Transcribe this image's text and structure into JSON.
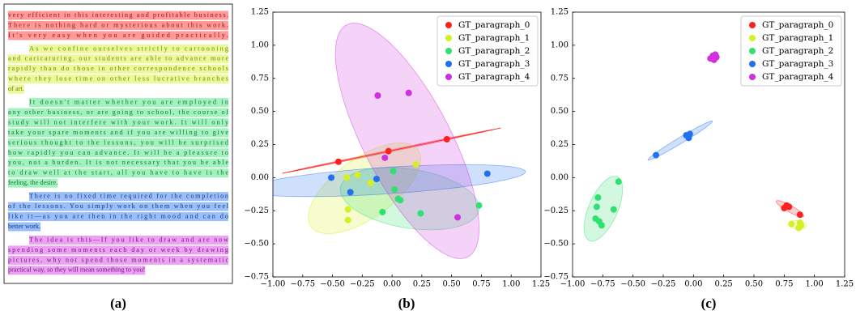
{
  "panel_labels": [
    "(a)",
    "(b)",
    "(c)"
  ],
  "document": {
    "paragraphs": [
      {
        "color": "#ff2020",
        "text_color": "#a01010",
        "lines": [
          "very efficient in this interesting and profitable business.",
          "There is nothing hard or mysterious about this work.",
          "It's very easy when you are guided practically."
        ]
      },
      {
        "color": "#d4f020",
        "text_color": "#6a8a00",
        "lines": [
          "As we confine ourselves strictly to cartooning",
          "and caricaturing, our students are able to advance more",
          "rapidly than do those in other correspondence schools",
          "where they lose time on other less lucrative branches",
          "of art."
        ]
      },
      {
        "color": "#30e070",
        "text_color": "#107a30",
        "lines": [
          "It doesn't matter whether you are employed in",
          "any other business, or are going to school, the course of",
          "study will not interfere with your work.  It will only",
          "take your spare moments and if you are willing to give",
          "serious thought to the lessons, you will be surprised",
          "how rapidly you can advance.  It will be a pleasure to",
          "you, not a burden.  It is not necessary that you be able",
          "to draw well at the start, all you have to have is the",
          "feeling, the desire."
        ]
      },
      {
        "color": "#2070f0",
        "text_color": "#103a90",
        "lines": [
          "There is no fixed time required for the completion",
          "of the lessons.  You simply work on them when you feel",
          "like it—as you are then in the right mood and can do",
          "better work."
        ]
      },
      {
        "color": "#d030e0",
        "text_color": "#7a1090",
        "lines": [
          "The idea is this—If you like to draw and are now",
          "spending some moments each day or week by drawing",
          "pictures, why not spend those moments in a systematic",
          "practical way, so they will mean something to you!"
        ]
      }
    ]
  },
  "chart_data": [
    {
      "type": "scatter",
      "legend": "upper right",
      "trend_series": 0,
      "xlim": [
        -1.0,
        1.25
      ],
      "ylim": [
        -0.75,
        1.25
      ],
      "xticks": [
        {
          "value": -1.0,
          "label": "−1.00"
        },
        {
          "value": -0.75,
          "label": "−0.75"
        },
        {
          "value": -0.5,
          "label": "−0.50"
        },
        {
          "value": -0.25,
          "label": "−0.25"
        },
        {
          "value": 0,
          "label": "0.00"
        },
        {
          "value": 0.25,
          "label": "0.25"
        },
        {
          "value": 0.5,
          "label": "0.50"
        },
        {
          "value": 0.75,
          "label": "0.75"
        },
        {
          "value": 1.0,
          "label": "1.00"
        },
        {
          "value": 1.25,
          "label": "1.25"
        }
      ],
      "yticks": [
        {
          "value": -0.75,
          "label": "−0.75"
        },
        {
          "value": -0.5,
          "label": "−0.50"
        },
        {
          "value": -0.25,
          "label": "−0.25"
        },
        {
          "value": 0,
          "label": "0.00"
        },
        {
          "value": 0.25,
          "label": "0.25"
        },
        {
          "value": 0.5,
          "label": "0.50"
        },
        {
          "value": 0.75,
          "label": "0.75"
        },
        {
          "value": 1.0,
          "label": "1.00"
        },
        {
          "value": 1.25,
          "label": "1.25"
        }
      ],
      "series": [
        {
          "name": "GT_paragraph_0",
          "color": "#ff2020",
          "x": [
            -0.45,
            -0.03,
            0.46
          ],
          "values": [
            0.12,
            0.2,
            0.29
          ]
        },
        {
          "name": "GT_paragraph_1",
          "color": "#d4f020",
          "x": [
            -0.38,
            -0.29,
            -0.37,
            -0.37,
            -0.18,
            0.2
          ],
          "values": [
            0.0,
            0.02,
            -0.24,
            -0.32,
            -0.04,
            0.1
          ]
        },
        {
          "name": "GT_paragraph_2",
          "color": "#30e070",
          "x": [
            0.01,
            0.02,
            0.05,
            0.07,
            -0.08,
            0.24,
            0.73
          ],
          "values": [
            0.05,
            -0.09,
            -0.16,
            -0.17,
            -0.26,
            -0.27,
            -0.21
          ]
        },
        {
          "name": "GT_paragraph_3",
          "color": "#2070f0",
          "x": [
            -0.51,
            -0.35,
            -0.13,
            0.8
          ],
          "values": [
            0.0,
            -0.11,
            -0.01,
            0.03
          ]
        },
        {
          "name": "GT_paragraph_4",
          "color": "#d030e0",
          "x": [
            -0.12,
            0.14,
            -0.06,
            0.55
          ],
          "values": [
            0.62,
            0.64,
            0.15,
            -0.3
          ]
        }
      ]
    },
    {
      "type": "scatter",
      "legend": "upper right",
      "xlim": [
        -1.0,
        1.25
      ],
      "ylim": [
        -0.75,
        1.25
      ],
      "xticks": [
        {
          "value": -1.0,
          "label": "−1.00"
        },
        {
          "value": -0.75,
          "label": "−0.75"
        },
        {
          "value": -0.5,
          "label": "−0.50"
        },
        {
          "value": -0.25,
          "label": "−0.25"
        },
        {
          "value": 0,
          "label": "0.00"
        },
        {
          "value": 0.25,
          "label": "0.25"
        },
        {
          "value": 0.5,
          "label": "0.50"
        },
        {
          "value": 0.75,
          "label": "0.75"
        },
        {
          "value": 1.0,
          "label": "1.00"
        },
        {
          "value": 1.25,
          "label": "1.25"
        }
      ],
      "yticks": [
        {
          "value": -0.75,
          "label": "−0.75"
        },
        {
          "value": -0.5,
          "label": "−0.50"
        },
        {
          "value": -0.25,
          "label": "−0.25"
        },
        {
          "value": 0,
          "label": "0.00"
        },
        {
          "value": 0.25,
          "label": "0.25"
        },
        {
          "value": 0.5,
          "label": "0.50"
        },
        {
          "value": 0.75,
          "label": "0.75"
        },
        {
          "value": 1.0,
          "label": "1.00"
        },
        {
          "value": 1.25,
          "label": "1.25"
        }
      ],
      "series": [
        {
          "name": "GT_paragraph_0",
          "color": "#ff2020",
          "x": [
            0.77,
            0.79,
            0.75,
            0.88
          ],
          "values": [
            -0.21,
            -0.22,
            -0.23,
            -0.28
          ]
        },
        {
          "name": "GT_paragraph_1",
          "color": "#d4f020",
          "x": [
            0.81,
            0.88,
            0.87,
            0.89
          ],
          "values": [
            -0.35,
            -0.34,
            -0.38,
            -0.36
          ]
        },
        {
          "name": "GT_paragraph_2",
          "color": "#30e070",
          "x": [
            -0.62,
            -0.79,
            -0.8,
            -0.81,
            -0.78,
            -0.76,
            -0.66
          ],
          "values": [
            -0.03,
            -0.15,
            -0.22,
            -0.31,
            -0.33,
            -0.36,
            -0.24
          ]
        },
        {
          "name": "GT_paragraph_3",
          "color": "#2070f0",
          "x": [
            -0.31,
            -0.06,
            -0.04,
            -0.03
          ],
          "values": [
            0.17,
            0.32,
            0.3,
            0.33
          ]
        },
        {
          "name": "GT_paragraph_4",
          "color": "#d030e0",
          "x": [
            0.14,
            0.16,
            0.18,
            0.19,
            0.17
          ],
          "values": [
            0.9,
            0.92,
            0.93,
            0.91,
            0.89
          ]
        }
      ]
    }
  ]
}
